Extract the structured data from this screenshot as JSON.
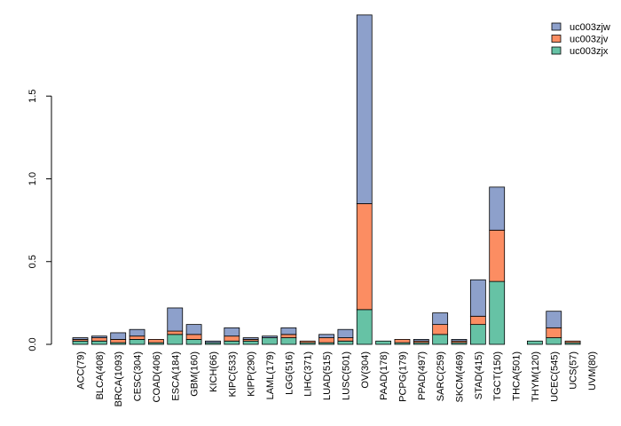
{
  "chart_data": {
    "type": "bar",
    "stacked": true,
    "title": "",
    "xlabel": "",
    "ylabel": "",
    "ylim": [
      0,
      2.0
    ],
    "yticks": [
      0.0,
      0.5,
      1.0,
      1.5
    ],
    "ytick_labels": [
      "0.0",
      "0.5",
      "1.0",
      "1.5"
    ],
    "grid": false,
    "legend_position": "top-right",
    "categories": [
      "ACC(79)",
      "BLCA(408)",
      "BRCA(1093)",
      "CESC(304)",
      "COAD(406)",
      "ESCA(184)",
      "GBM(160)",
      "KICH(66)",
      "KIPC(533)",
      "KIPP(290)",
      "LAML(179)",
      "LGG(516)",
      "LIHC(371)",
      "LUAD(515)",
      "LUSC(501)",
      "OV(304)",
      "PAAD(178)",
      "PCPG(179)",
      "PPAD(497)",
      "SARC(259)",
      "SKCM(469)",
      "STAD(415)",
      "TGCT(150)",
      "THCA(501)",
      "THYM(120)",
      "UCEC(545)",
      "UCS(57)",
      "UVM(80)"
    ],
    "series": [
      {
        "name": "uc003zjx",
        "color": "#66c2a5",
        "values": [
          0.02,
          0.02,
          0.01,
          0.03,
          0.01,
          0.06,
          0.03,
          0.01,
          0.02,
          0.02,
          0.04,
          0.04,
          0.01,
          0.01,
          0.02,
          0.21,
          0.02,
          0.01,
          0.01,
          0.06,
          0.01,
          0.12,
          0.38,
          0.0,
          0.02,
          0.04,
          0.01,
          0.0
        ]
      },
      {
        "name": "uc003zjv",
        "color": "#fc8d62",
        "values": [
          0.01,
          0.02,
          0.02,
          0.02,
          0.02,
          0.02,
          0.03,
          0.0,
          0.03,
          0.01,
          0.0,
          0.02,
          0.01,
          0.03,
          0.02,
          0.64,
          0.0,
          0.02,
          0.01,
          0.06,
          0.01,
          0.05,
          0.31,
          0.0,
          0.0,
          0.06,
          0.01,
          0.0
        ]
      },
      {
        "name": "uc003zjw",
        "color": "#8da0cb",
        "values": [
          0.01,
          0.01,
          0.04,
          0.04,
          0.0,
          0.14,
          0.06,
          0.01,
          0.05,
          0.01,
          0.01,
          0.04,
          0.0,
          0.02,
          0.05,
          1.14,
          0.0,
          0.0,
          0.01,
          0.07,
          0.01,
          0.22,
          0.26,
          0.0,
          0.0,
          0.1,
          0.0,
          0.0
        ]
      }
    ],
    "legend": [
      "uc003zjw",
      "uc003zjv",
      "uc003zjx"
    ]
  }
}
